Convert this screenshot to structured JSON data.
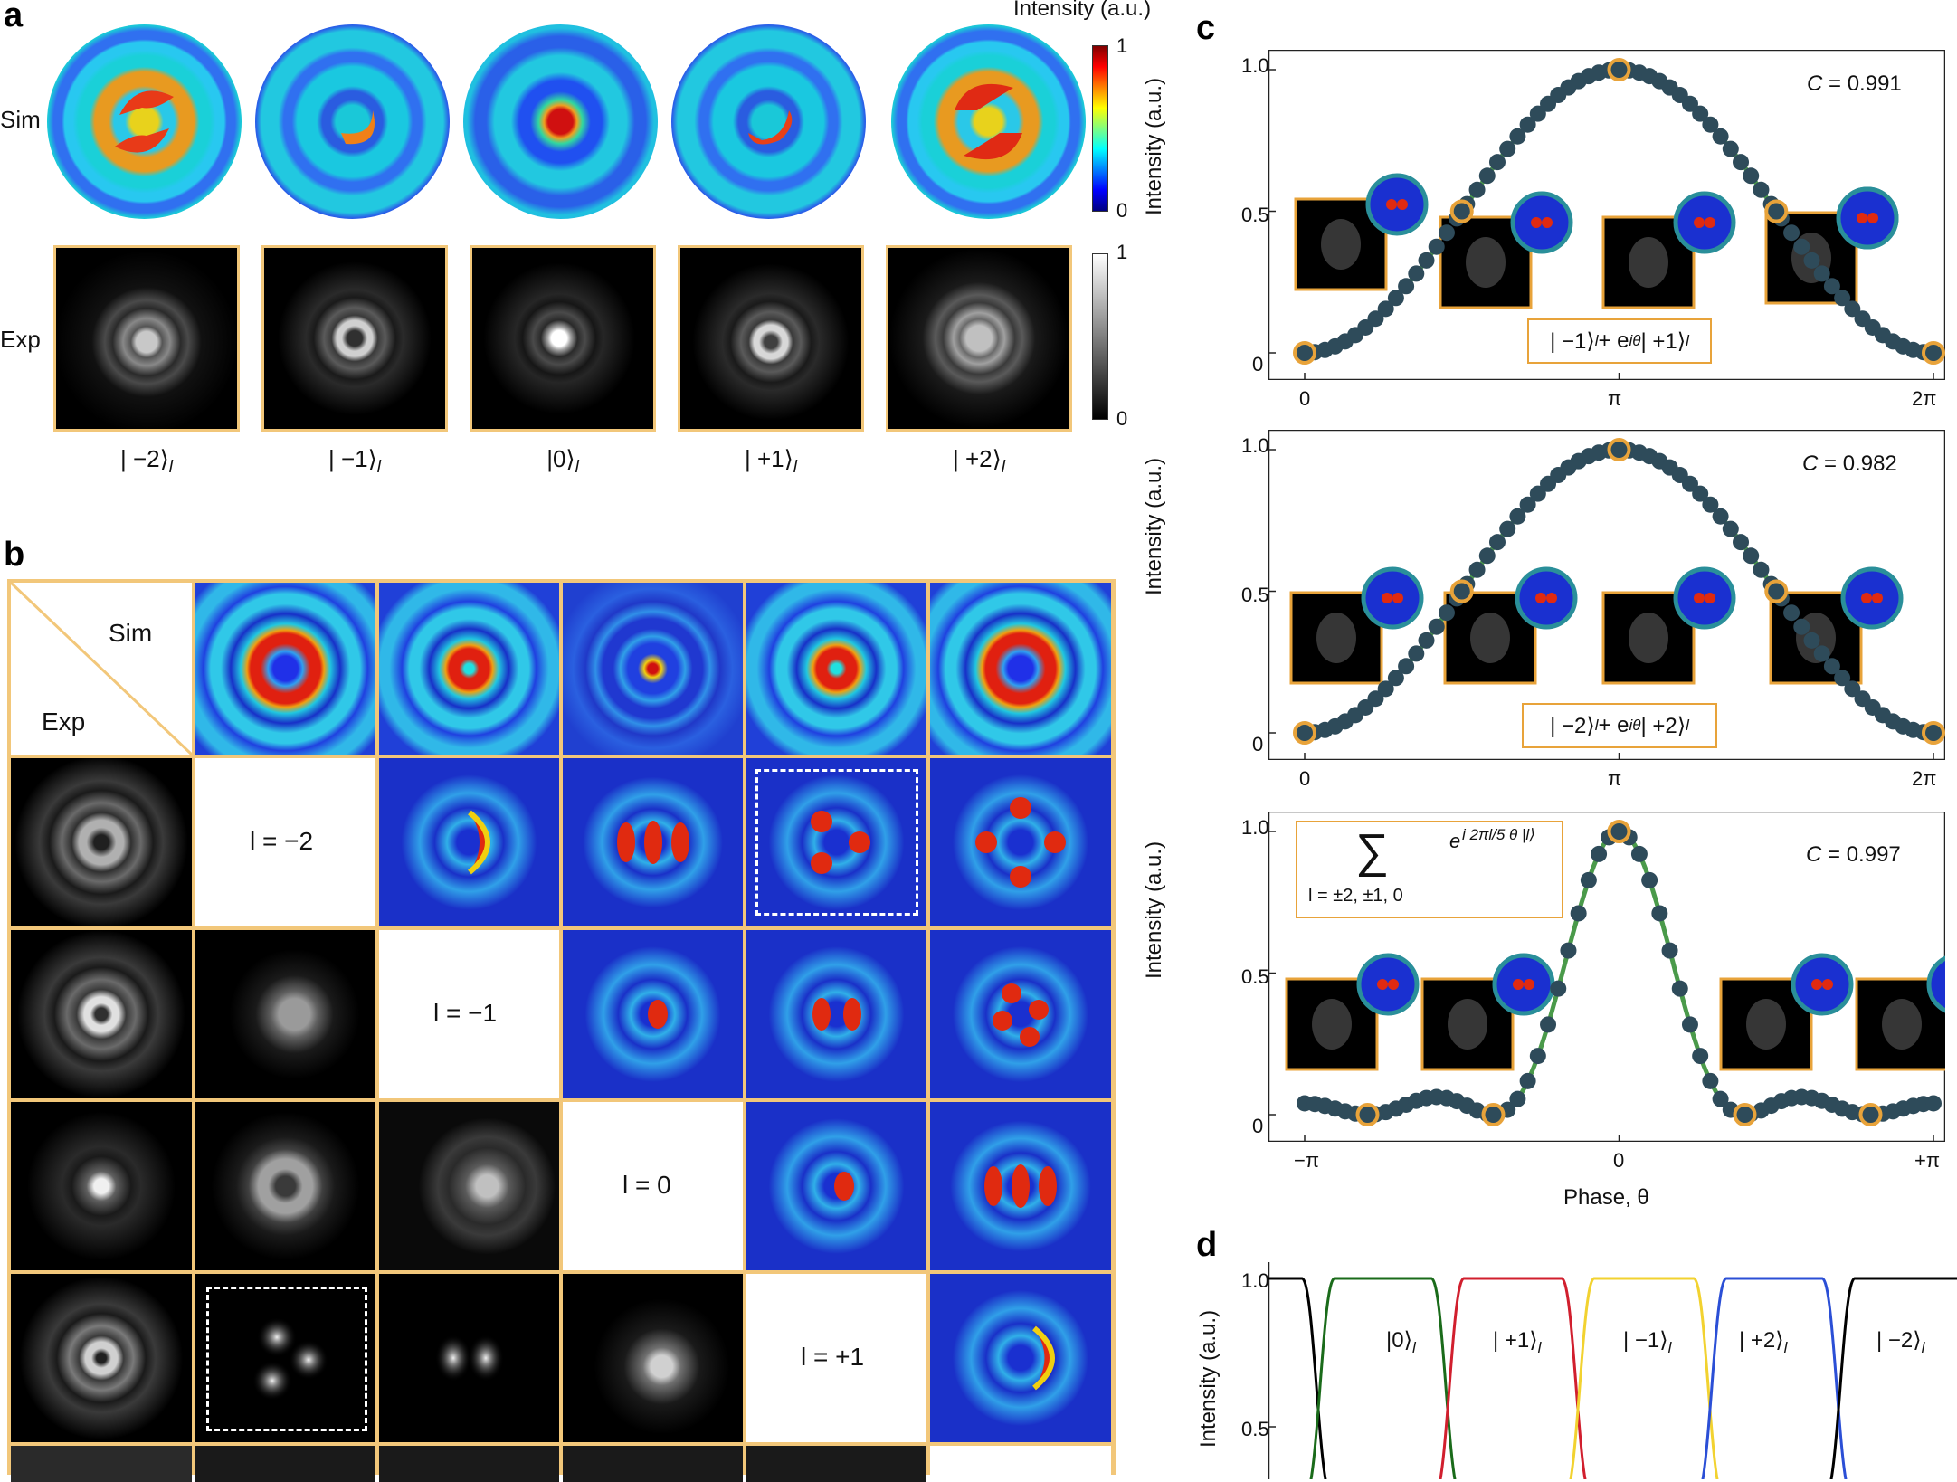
{
  "panel_a": {
    "letter": "a",
    "colorbar_title": "Intensity (a.u.)",
    "row_sim": "Sim",
    "row_exp": "Exp",
    "colorbar_sim_top": "1",
    "colorbar_sim_bottom": "0",
    "colorbar_exp_top": "1",
    "colorbar_exp_bottom": "0",
    "states": [
      "| −2⟩",
      "| −1⟩",
      "|0⟩",
      "| +1⟩",
      "| +2⟩"
    ],
    "state_sub": "l"
  },
  "panel_b": {
    "letter": "b",
    "corner_sim": "Sim",
    "corner_exp": "Exp",
    "diag": [
      "l = −2",
      "l = −1",
      "l = 0",
      "l = +1"
    ]
  },
  "panel_c": {
    "letter": "c",
    "plots": [
      {
        "ylabel": "Intensity (a.u.)",
        "yticks": [
          "1.0",
          "0.5",
          "0"
        ],
        "xticks": [
          "0",
          "π",
          "2π"
        ],
        "C_symbol": "C",
        "C_value": "= 0.991",
        "ket_pre": "| −1⟩",
        "ket_mid": " + e",
        "ket_sup": "iθ",
        "ket_post": "| +1⟩",
        "sub": "l"
      },
      {
        "ylabel": "Intensity (a.u.)",
        "yticks": [
          "1.0",
          "0.5",
          "0"
        ],
        "xticks": [
          "0",
          "π",
          "2π"
        ],
        "C_symbol": "C",
        "C_value": "= 0.982",
        "ket_pre": "| −2⟩",
        "ket_mid": " + e",
        "ket_sup": "iθ",
        "ket_post": "| +2⟩",
        "sub": "l"
      },
      {
        "ylabel": "Intensity (a.u.)",
        "yticks": [
          "1.0",
          "0.5",
          "0"
        ],
        "xticks": [
          "−π",
          "0",
          "+π"
        ],
        "xlabel": "Phase, θ",
        "C_symbol": "C",
        "C_value": "= 0.997",
        "sum_symbol": "∑",
        "sum_range": "l = ±2, ±1, 0",
        "sum_term": "e",
        "sum_exp": "i 2πl/5 θ |l⟩"
      }
    ]
  },
  "panel_d": {
    "letter": "d",
    "ylabel": "Intensity (a.u.)",
    "yticks": [
      "1.0",
      "0.5"
    ],
    "states": [
      "|0⟩",
      "| +1⟩",
      "| −1⟩",
      "| +2⟩",
      "| −2⟩"
    ],
    "sub": "l",
    "colors": [
      "#000000",
      "#1a6b1a",
      "#d11f2e",
      "#f2d230",
      "#2b4fd6",
      "#000000"
    ]
  },
  "colors": {
    "frame": "#f2c77a",
    "orange_box": "#e8a33a",
    "dot": "#2e4b5a",
    "fit_green": "#4a9a4a",
    "teal": "#2a8f9a"
  }
}
